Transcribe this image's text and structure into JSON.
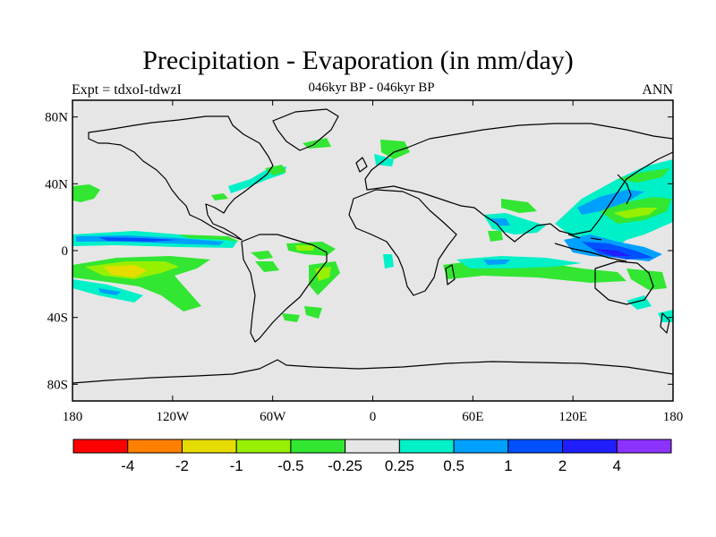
{
  "title": "Precipitation - Evaporation (in mm/day)",
  "subtitle": "046kyr BP - 046kyr BP",
  "left_label": "Expt = tdxoI-tdwzI",
  "right_label": "ANN",
  "map": {
    "projection": "cylindrical-equidistant",
    "lon_range": [
      -180,
      180
    ],
    "lat_range": [
      -90,
      90
    ],
    "background_color": "#e6e6e6",
    "coastline_color": "#000000",
    "x_ticks": [
      {
        "lon": -180,
        "label": "180"
      },
      {
        "lon": -120,
        "label": "120W"
      },
      {
        "lon": -60,
        "label": "60W"
      },
      {
        "lon": 0,
        "label": "0"
      },
      {
        "lon": 60,
        "label": "60E"
      },
      {
        "lon": 120,
        "label": "120E"
      },
      {
        "lon": 180,
        "label": "180"
      }
    ],
    "y_ticks": [
      {
        "lat": 80,
        "label": "80N"
      },
      {
        "lat": 40,
        "label": "40N"
      },
      {
        "lat": 0,
        "label": "0"
      },
      {
        "lat": -40,
        "label": "40S"
      },
      {
        "lat": -80,
        "label": "80S"
      }
    ]
  },
  "colorbar": {
    "colors": [
      "#ff0000",
      "#ff8000",
      "#e6dc00",
      "#96f000",
      "#32e632",
      "#e6e6e6",
      "#00f0c8",
      "#00a0ff",
      "#0050ff",
      "#1e1eff",
      "#8c32ff"
    ],
    "labels": [
      "-4",
      "-2",
      "-1",
      "-0.5",
      "-0.25",
      "0.25",
      "0.5",
      "1",
      "2",
      "4"
    ]
  }
}
